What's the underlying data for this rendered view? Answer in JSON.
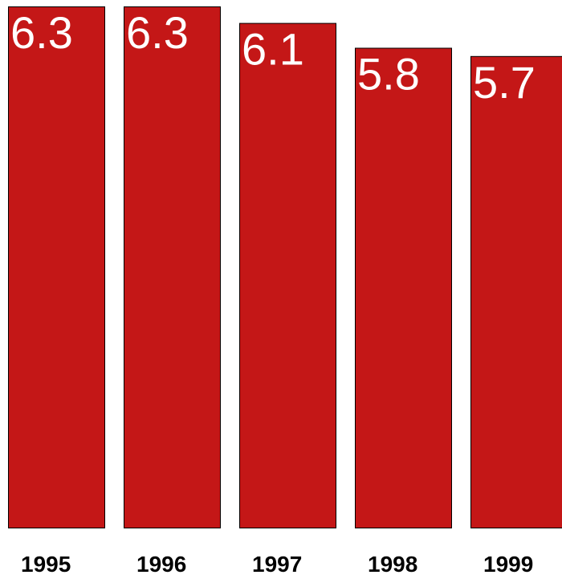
{
  "chart_data": {
    "type": "bar",
    "categories": [
      "1995",
      "1996",
      "1997",
      "1998",
      "1999"
    ],
    "values": [
      6.3,
      6.3,
      6.1,
      5.8,
      5.7
    ],
    "value_labels": [
      "6.3",
      "6.3",
      "6.1",
      "5.8",
      "5.7"
    ],
    "title": "",
    "xlabel": "",
    "ylabel": "",
    "ylim": [
      0,
      6.3
    ],
    "grid": false,
    "legend": "none",
    "bar_color": "#c41717",
    "label_color": "#ffffff"
  }
}
